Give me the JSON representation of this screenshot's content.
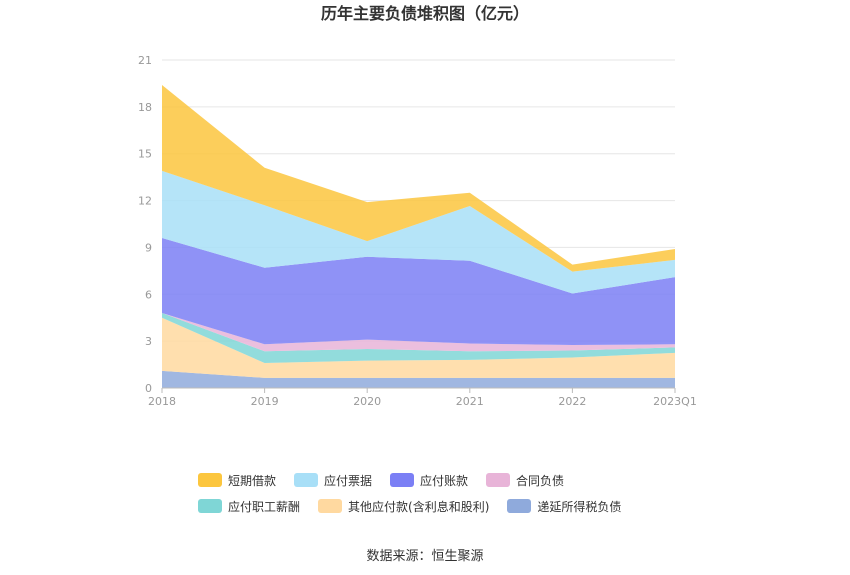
{
  "chart_data": {
    "type": "area",
    "stacked": true,
    "title": "历年主要负债堆积图（亿元）",
    "categories": [
      "2018",
      "2019",
      "2020",
      "2021",
      "2022",
      "2023Q1"
    ],
    "ylim": [
      0,
      21
    ],
    "yticks": [
      0,
      3,
      6,
      9,
      12,
      15,
      18,
      21
    ],
    "grid": true,
    "legend_position": "bottom",
    "series": [
      {
        "name": "递延所得税负债",
        "color": "#8faadc",
        "values": [
          1.1,
          0.65,
          0.65,
          0.65,
          0.65,
          0.65
        ]
      },
      {
        "name": "其他应付款(含利息和股利)",
        "color": "#ffd9a0",
        "values": [
          3.4,
          0.95,
          1.1,
          1.15,
          1.3,
          1.6
        ]
      },
      {
        "name": "应付职工薪酬",
        "color": "#7fd6d6",
        "values": [
          0.3,
          0.75,
          0.75,
          0.55,
          0.45,
          0.35
        ]
      },
      {
        "name": "合同负债",
        "color": "#e8b4d8",
        "values": [
          0.0,
          0.45,
          0.6,
          0.5,
          0.35,
          0.2
        ]
      },
      {
        "name": "应付账款",
        "color": "#7b7ff5",
        "values": [
          4.8,
          4.9,
          5.3,
          5.3,
          3.3,
          4.3
        ]
      },
      {
        "name": "应付票据",
        "color": "#a8dff7",
        "values": [
          4.3,
          4.0,
          1.0,
          3.5,
          1.4,
          1.1
        ]
      },
      {
        "name": "短期借款",
        "color": "#fcc63e",
        "values": [
          5.5,
          2.4,
          2.5,
          0.85,
          0.45,
          0.7
        ]
      }
    ],
    "legend_order": [
      "短期借款",
      "应付票据",
      "应付账款",
      "合同负债",
      "应付职工薪酬",
      "其他应付款(含利息和股利)",
      "递延所得税负债"
    ]
  },
  "source_text": "数据来源：恒生聚源"
}
